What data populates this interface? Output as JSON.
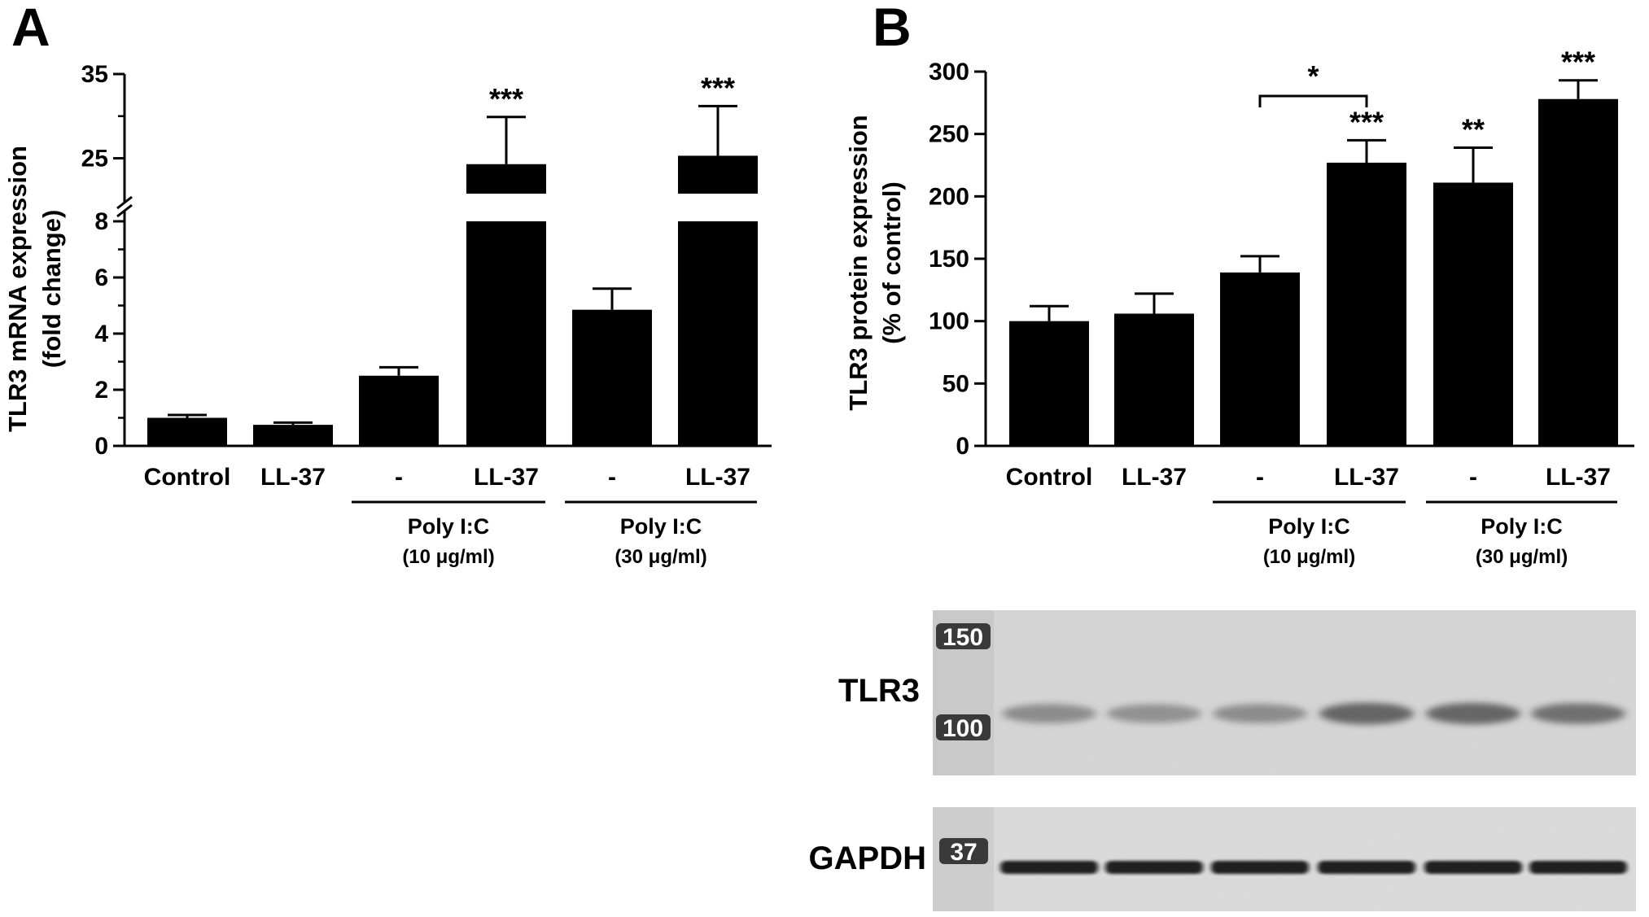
{
  "panels": {
    "a_letter": "A",
    "b_letter": "B"
  },
  "chart_data": [
    {
      "panel": "A",
      "type": "bar",
      "categories": [
        "Control",
        "LL-37",
        "-",
        "LL-37",
        "-",
        "LL-37"
      ],
      "values": [
        1.0,
        0.75,
        2.5,
        24.3,
        4.85,
        25.3
      ],
      "errors": [
        0.1,
        0.08,
        0.3,
        5.6,
        0.75,
        5.9
      ],
      "significance": [
        "",
        "",
        "",
        "***",
        "",
        "***"
      ],
      "groups": [
        {
          "label": "Poly I:C",
          "sublabel": "(10 μg/ml)",
          "from": 2,
          "to": 3
        },
        {
          "label": "Poly I:C",
          "sublabel": "(30 μg/ml)",
          "from": 4,
          "to": 5
        }
      ],
      "ylabel_line1": "TLR3 mRNA expression",
      "ylabel_line2": "(fold change)",
      "broken_axis": true,
      "lower_segment": {
        "ylim": [
          0,
          8
        ],
        "ticks": [
          "0",
          "2",
          "4",
          "6",
          "8"
        ]
      },
      "upper_segment": {
        "ylim": [
          20.8,
          35
        ],
        "ticks": [
          "25",
          "35"
        ]
      },
      "grid": false
    },
    {
      "panel": "B",
      "type": "bar",
      "categories": [
        "Control",
        "LL-37",
        "-",
        "LL-37",
        "-",
        "LL-37"
      ],
      "values": [
        100,
        106,
        139,
        227,
        211,
        278
      ],
      "errors": [
        12,
        16,
        13,
        18,
        28,
        15
      ],
      "significance": [
        "",
        "",
        "",
        "***",
        "**",
        "***"
      ],
      "comparisons": [
        {
          "from": 2,
          "to": 3,
          "label": "*"
        }
      ],
      "groups": [
        {
          "label": "Poly I:C",
          "sublabel": "(10 μg/ml)",
          "from": 2,
          "to": 3
        },
        {
          "label": "Poly I:C",
          "sublabel": "(30 μg/ml)",
          "from": 4,
          "to": 5
        }
      ],
      "ylabel_line1": "TLR3 protein expression",
      "ylabel_line2": "(% of control)",
      "ylim": [
        0,
        300
      ],
      "ticks": [
        "0",
        "50",
        "100",
        "150",
        "200",
        "250",
        "300"
      ],
      "grid": false
    }
  ],
  "blot": {
    "tlr3": {
      "label": "TLR3",
      "markers": [
        "150",
        "100"
      ],
      "intensity": [
        0.45,
        0.4,
        0.45,
        0.8,
        0.78,
        0.7
      ]
    },
    "gapdh": {
      "label": "GAPDH",
      "markers": [
        "37"
      ],
      "intensity": [
        1,
        1,
        1,
        1,
        1,
        1
      ]
    }
  }
}
